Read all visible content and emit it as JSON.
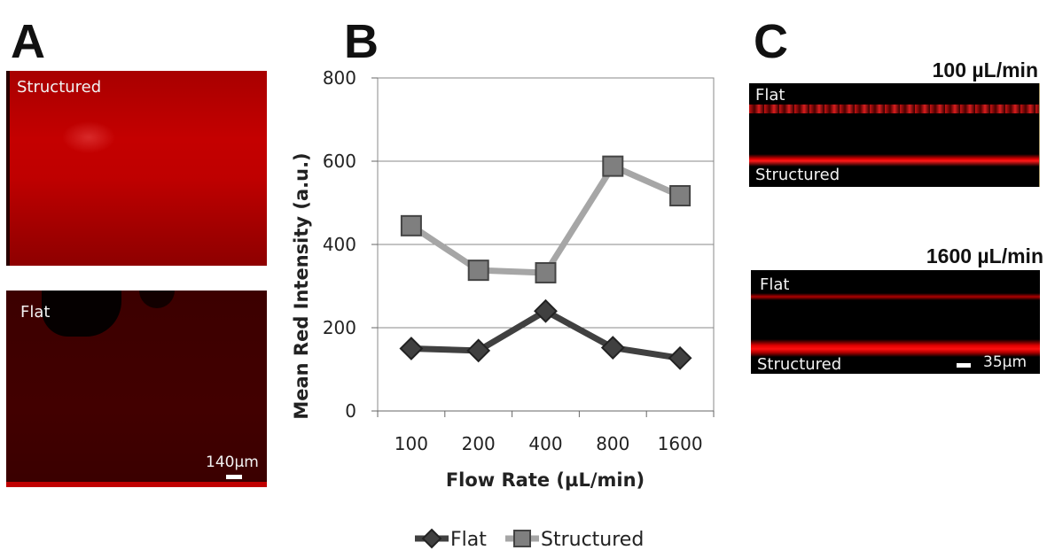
{
  "panel_a": {
    "letter": "A",
    "top_image_label": "Structured",
    "bottom_image_label": "Flat",
    "scale_label": "140µm"
  },
  "panel_b": {
    "letter": "B"
  },
  "panel_c": {
    "letter": "C",
    "top": {
      "title": "100 µL/min",
      "label_top": "Flat",
      "label_bottom": "Structured"
    },
    "bottom": {
      "title": "1600 µL/min",
      "label_top": "Flat",
      "label_bottom": "Structured",
      "scale_label": "35µm"
    }
  },
  "chart_data": {
    "type": "line",
    "categories": [
      "100",
      "200",
      "400",
      "800",
      "1600"
    ],
    "series": [
      {
        "name": "Flat",
        "values": [
          150,
          145,
          240,
          152,
          127
        ],
        "color": "#404040",
        "marker": "diamond"
      },
      {
        "name": "Structured",
        "values": [
          445,
          338,
          332,
          588,
          517
        ],
        "color": "#a6a6a6",
        "marker": "square"
      }
    ],
    "yticks": [
      "0",
      "200",
      "400",
      "600",
      "800"
    ],
    "ylim": [
      0,
      800
    ],
    "xlabel": "Flow Rate (µL/min)",
    "ylabel": "Mean Red Intensity (a.u.)",
    "grid": true,
    "legend_position": "bottom"
  }
}
